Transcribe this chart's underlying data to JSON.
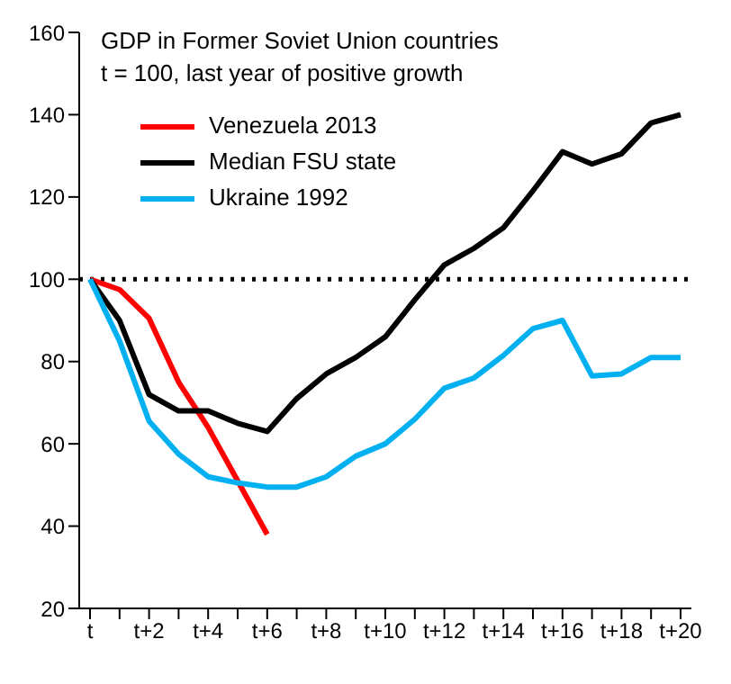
{
  "chart_data": {
    "type": "line",
    "title": "GDP  in Former Soviet Union countries",
    "subtitle": "t = 100,  last year of positive growth",
    "categories": [
      "t",
      null,
      "t+2",
      null,
      "t+4",
      null,
      "t+6",
      null,
      "t+8",
      null,
      "t+10",
      null,
      "t+12",
      null,
      "t+14",
      null,
      "t+16",
      null,
      "t+18",
      null,
      "t+20"
    ],
    "series": [
      {
        "name": "Venezuela 2013",
        "color": "#ff0000",
        "values": [
          100,
          97.5,
          90.5,
          75,
          64,
          51,
          38,
          null,
          null,
          null,
          null,
          null,
          null,
          null,
          null,
          null,
          null,
          null,
          null,
          null,
          null
        ]
      },
      {
        "name": "Median FSU state",
        "color": "#000000",
        "values": [
          100,
          90,
          72,
          68,
          68,
          65,
          63,
          71,
          77,
          81,
          86,
          95,
          103.5,
          107.5,
          112.5,
          121.5,
          131,
          128,
          130.5,
          138,
          140
        ]
      },
      {
        "name": "Ukraine 1992",
        "color": "#00b0f0",
        "values": [
          100,
          85,
          65.5,
          57.5,
          52,
          50.5,
          49.5,
          49.5,
          52,
          57,
          60,
          66,
          73.5,
          76,
          81.5,
          88,
          90,
          76.5,
          77,
          81,
          81
        ]
      }
    ],
    "ylim": [
      20,
      160
    ],
    "yticks": [
      20,
      40,
      60,
      80,
      100,
      120,
      140,
      160
    ],
    "grid": false,
    "legend": "top left",
    "marker": "none",
    "line_style": "solid",
    "ref_lines": [
      {
        "axis": "y",
        "value": 100,
        "line_style": "dotted",
        "color": "#000000"
      }
    ]
  }
}
